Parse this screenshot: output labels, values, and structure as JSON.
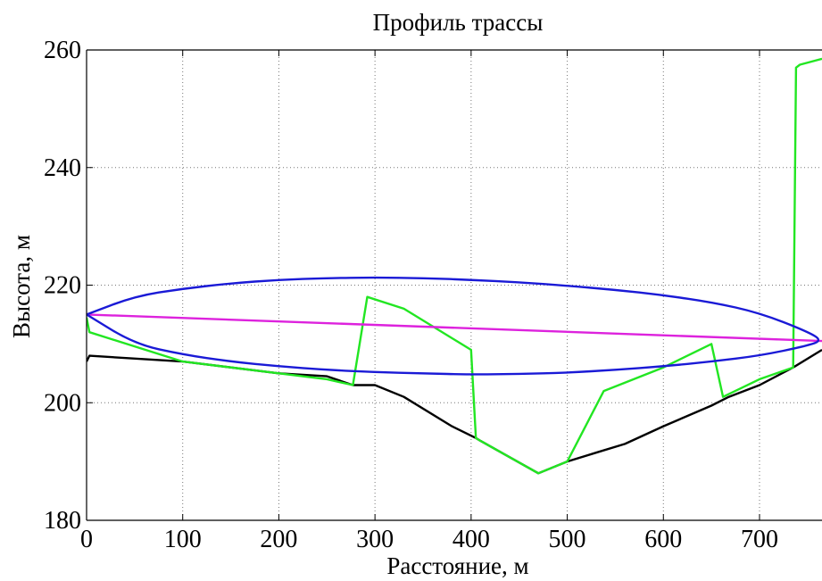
{
  "chart_data": {
    "type": "line",
    "title": "Профиль трассы",
    "xlabel": "Расстояние, м",
    "ylabel": "Высота, м",
    "xlim": [
      0,
      765
    ],
    "ylim": [
      180,
      260
    ],
    "grid": true,
    "x_ticks": [
      0,
      100,
      200,
      300,
      400,
      500,
      600,
      700
    ],
    "x_tick_labels": [
      "0",
      "100",
      "200",
      "300",
      "400",
      "500",
      "600",
      "700"
    ],
    "y_ticks": [
      180,
      200,
      220,
      240,
      260
    ],
    "y_tick_labels": [
      "180",
      "200",
      "220",
      "240",
      "260"
    ],
    "series": [
      {
        "color": "#000000",
        "x": [
          0,
          3,
          100,
          200,
          250,
          277,
          300,
          330,
          380,
          405,
          410,
          470,
          500,
          530,
          560,
          600,
          650,
          668,
          700,
          735,
          765
        ],
        "y": [
          207,
          208,
          207,
          205,
          204.5,
          203,
          203,
          201,
          196,
          194,
          193.5,
          188,
          190,
          191.5,
          193,
          196,
          199.5,
          201,
          203,
          206,
          209
        ]
      },
      {
        "color": "#22e622",
        "x": [
          0,
          3,
          100,
          200,
          250,
          277,
          292,
          330,
          400,
          405,
          410,
          470,
          500,
          538,
          600,
          650,
          662,
          700,
          735,
          738,
          742,
          765
        ],
        "y": [
          214.5,
          212,
          207,
          205,
          204,
          203,
          218,
          216,
          209,
          194,
          193.5,
          188,
          190,
          202,
          206,
          210,
          201,
          204,
          206,
          257,
          257.5,
          258.5
        ]
      },
      {
        "color": "#dd22dd",
        "x": [
          0,
          765
        ],
        "y": [
          215,
          210.5
        ]
      },
      {
        "color": "#1a1ad6",
        "shape": "ellipse",
        "x": [
          0,
          50,
          100,
          150,
          200,
          250,
          300,
          350,
          400,
          450,
          500,
          550,
          600,
          650,
          700,
          750,
          765,
          750,
          700,
          650,
          600,
          550,
          500,
          450,
          400,
          350,
          300,
          250,
          200,
          150,
          100,
          50,
          0
        ],
        "y": [
          215,
          218.1,
          219.4,
          220.3,
          220.9,
          221.2,
          221.3,
          221.2,
          220.9,
          220.5,
          219.9,
          219.2,
          218.3,
          217.1,
          215.3,
          212.1,
          210.6,
          209.7,
          208.0,
          207.0,
          206.2,
          205.6,
          205.1,
          204.9,
          204.8,
          205.0,
          205.2,
          205.6,
          206.2,
          207.0,
          208.2,
          210.0,
          215
        ]
      }
    ]
  }
}
